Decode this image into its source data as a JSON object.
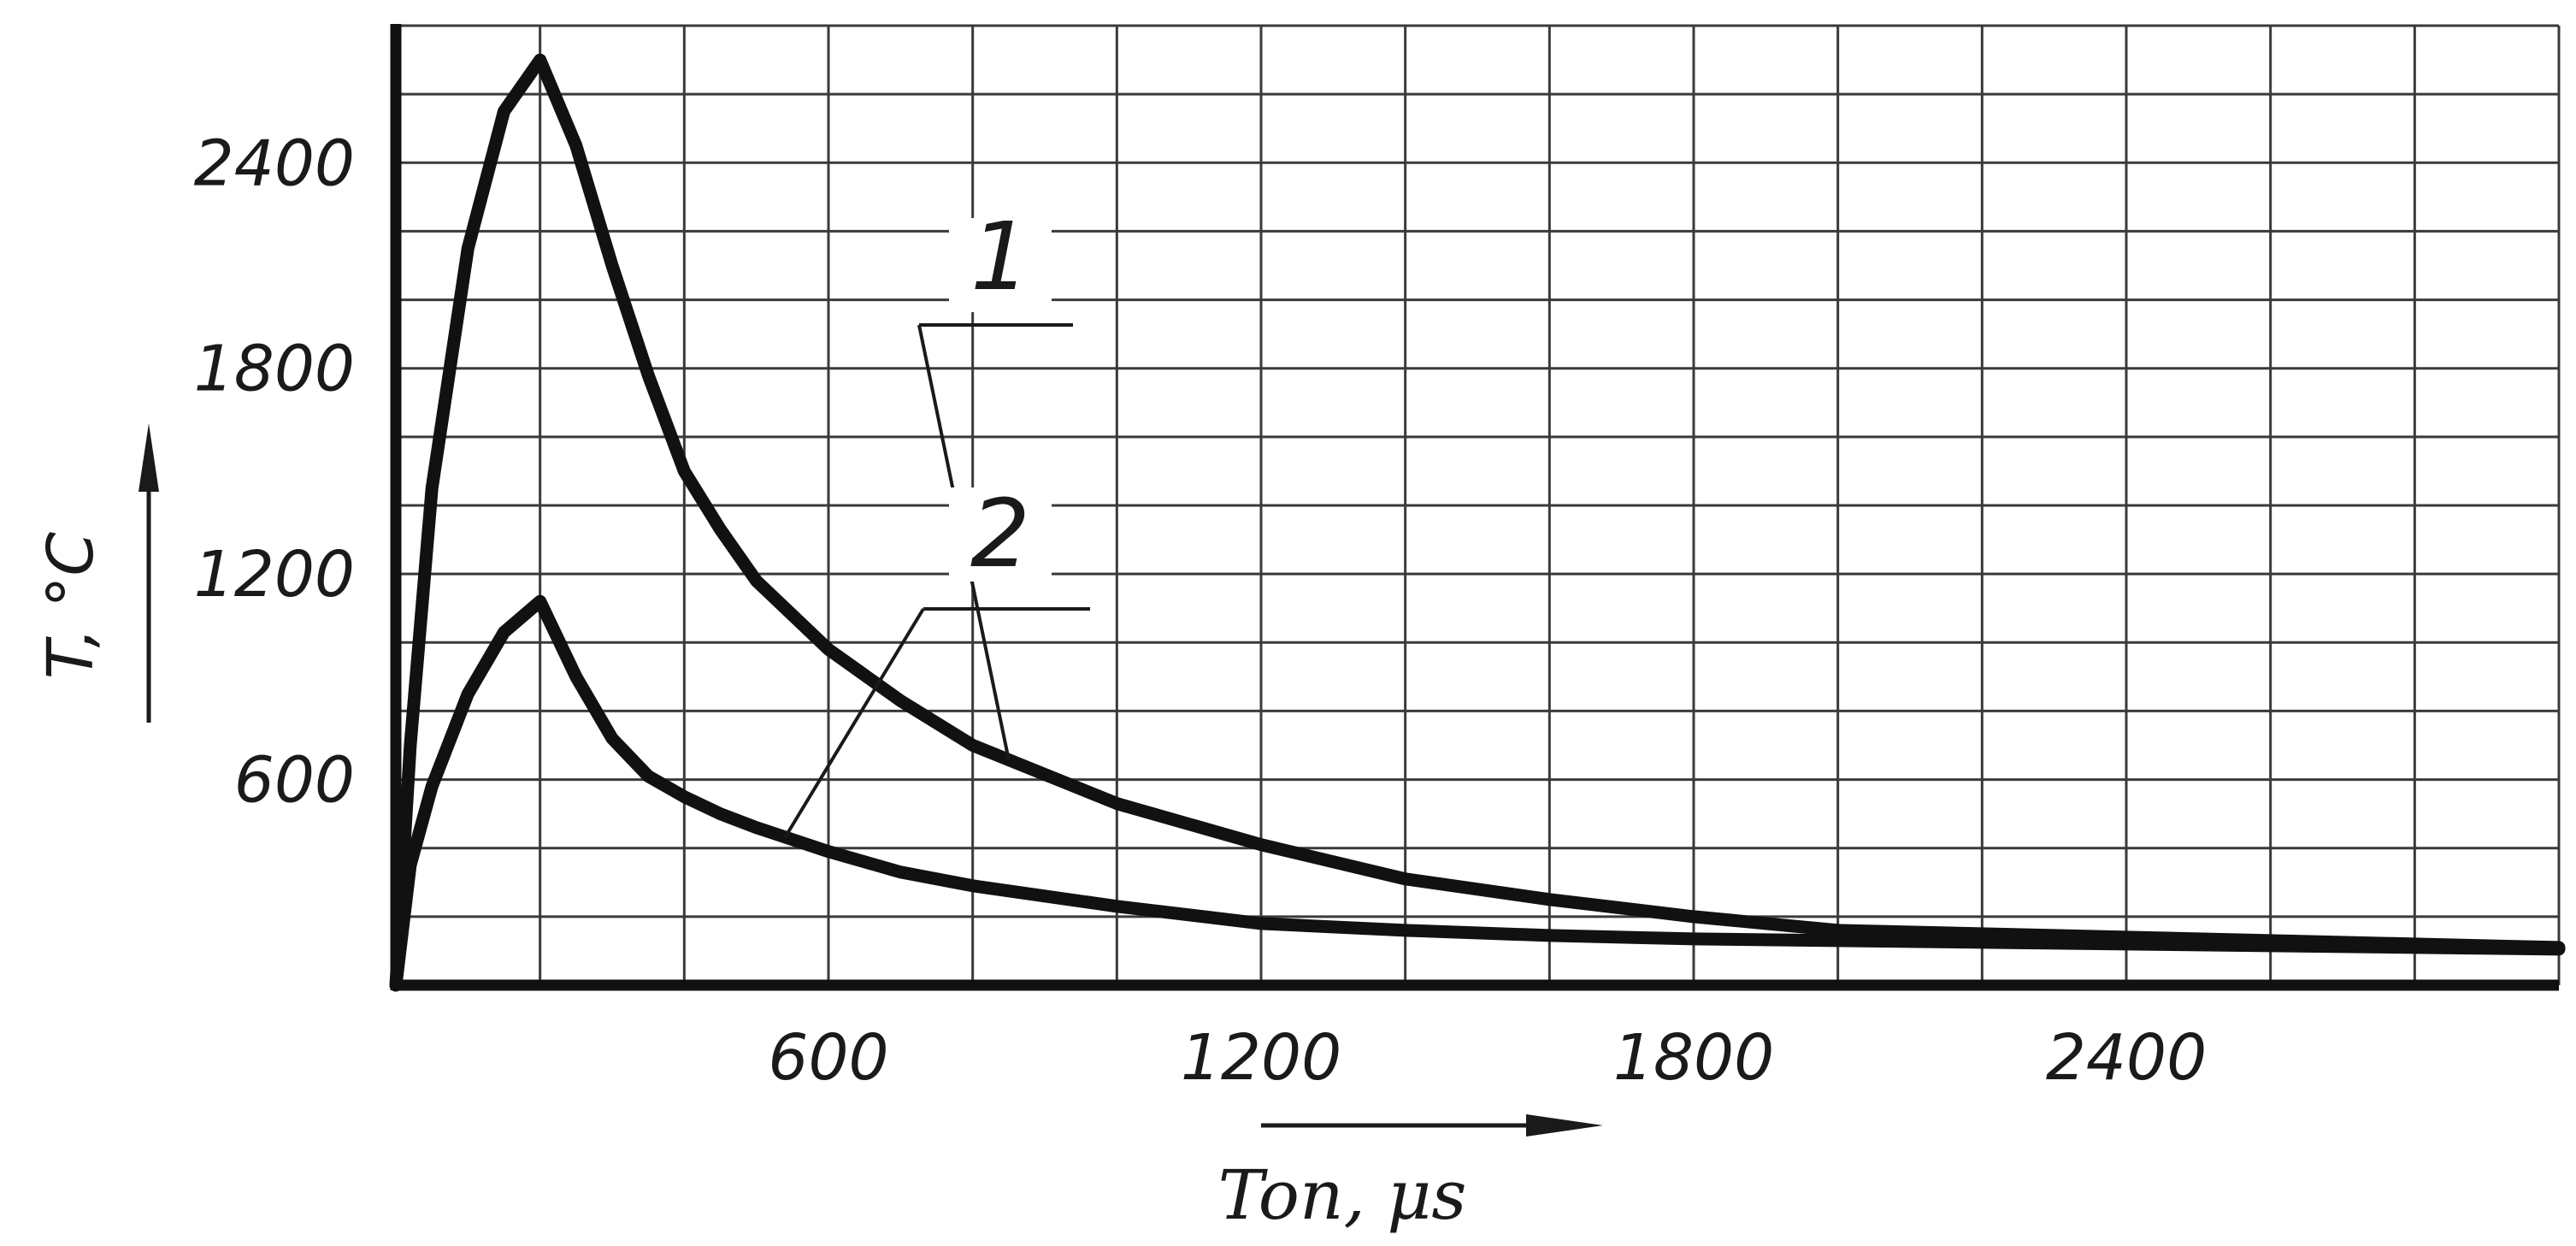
{
  "chart_data": {
    "type": "line",
    "title": "",
    "xlabel": "Ton, μs",
    "ylabel": "T, °C",
    "xlim": [
      0,
      3000
    ],
    "ylim": [
      0,
      2800
    ],
    "x_ticks": [
      600,
      1200,
      1800,
      2400
    ],
    "x_tick_labels": [
      "600",
      "1200",
      "1800",
      "2400"
    ],
    "y_ticks": [
      600,
      1200,
      1800,
      2400
    ],
    "y_tick_labels": [
      "600",
      "1200",
      "1800",
      "2400"
    ],
    "grid": true,
    "x_grid_step": 200,
    "y_grid_step": 200,
    "series": [
      {
        "name": "1",
        "x": [
          0,
          20,
          50,
          100,
          150,
          200,
          250,
          300,
          350,
          400,
          450,
          500,
          600,
          700,
          800,
          1000,
          1200,
          1400,
          1600,
          1800,
          2000,
          2200,
          2400,
          2600,
          2800,
          3000
        ],
        "y": [
          0,
          700,
          1450,
          2150,
          2550,
          2700,
          2450,
          2100,
          1780,
          1500,
          1330,
          1180,
          980,
          830,
          700,
          530,
          410,
          310,
          250,
          200,
          160,
          150,
          140,
          130,
          120,
          110
        ]
      },
      {
        "name": "2",
        "x": [
          0,
          20,
          50,
          100,
          150,
          200,
          250,
          300,
          350,
          400,
          450,
          500,
          600,
          700,
          800,
          1000,
          1200,
          1400,
          1600,
          1800,
          2000,
          2200,
          2400,
          2600,
          2800,
          3000
        ],
        "y": [
          0,
          350,
          580,
          850,
          1030,
          1120,
          900,
          720,
          610,
          550,
          500,
          460,
          390,
          330,
          290,
          230,
          180,
          160,
          145,
          135,
          130,
          125,
          120,
          115,
          110,
          105
        ]
      }
    ],
    "annotations": [
      {
        "text": "1",
        "series": "1"
      },
      {
        "text": "2",
        "series": "2"
      }
    ]
  }
}
